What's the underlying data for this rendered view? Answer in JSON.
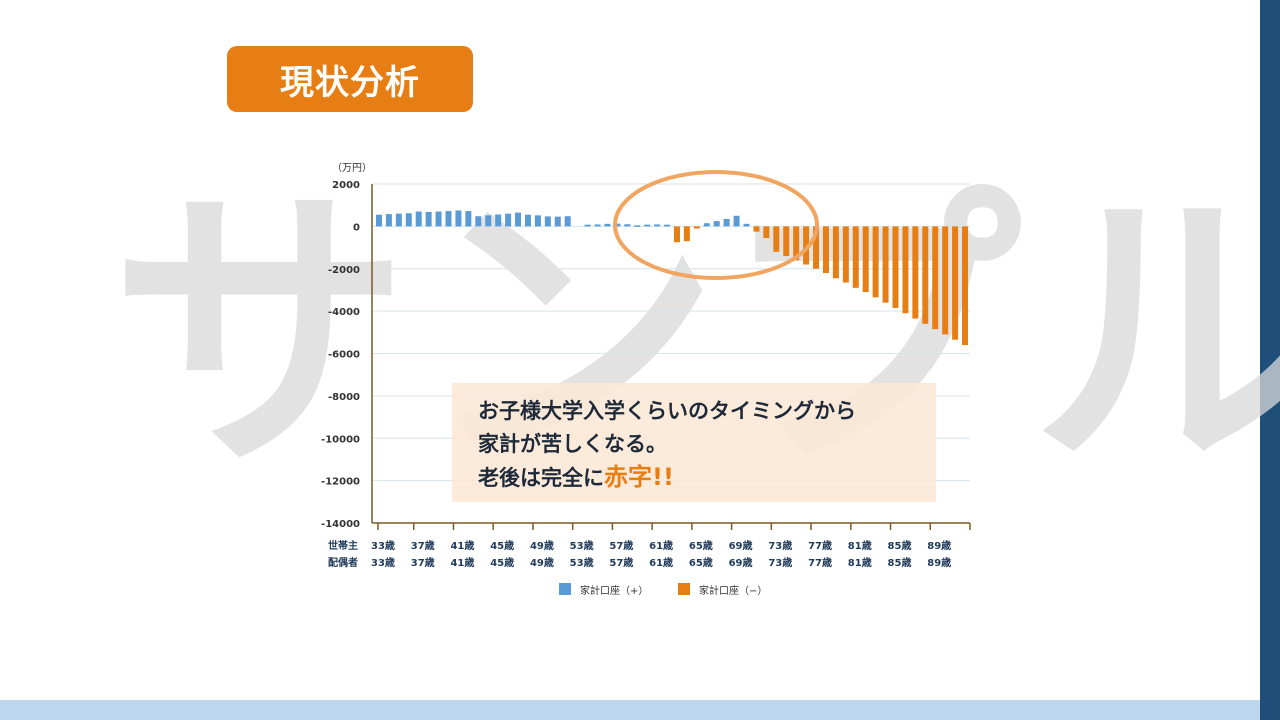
{
  "title": "現状分析",
  "watermark": "サンプル",
  "callout": {
    "line1": "お子様大学入学くらいのタイミングから",
    "line2": "家計が苦しくなる。",
    "line3_prefix": "老後は完全に",
    "line3_highlight": "赤字!!"
  },
  "colors": {
    "accent": "#e67e13",
    "positive": "#5b9bd5",
    "negative": "#e67e13",
    "navy": "#1f4e79",
    "light_blue": "#bdd7ee"
  },
  "chart_data": {
    "type": "bar",
    "yunit": "（万円）",
    "ylim": [
      -14000,
      2000
    ],
    "yticks": [
      "2000",
      "0",
      "-2000",
      "-4000",
      "-6000",
      "-8000",
      "-10000",
      "-12000",
      "-14000"
    ],
    "grid": true,
    "row_labels": [
      "世帯主",
      "配偶者"
    ],
    "xtick_labels": [
      "33歳",
      "37歳",
      "41歳",
      "45歳",
      "49歳",
      "53歳",
      "57歳",
      "61歳",
      "65歳",
      "69歳",
      "73歳",
      "77歳",
      "81歳",
      "85歳",
      "89歳"
    ],
    "age_start": 33,
    "age_end": 92,
    "values": [
      550,
      580,
      600,
      620,
      700,
      680,
      700,
      720,
      750,
      720,
      480,
      520,
      560,
      600,
      650,
      550,
      520,
      470,
      460,
      480,
      0,
      80,
      90,
      120,
      130,
      100,
      50,
      80,
      90,
      80,
      -750,
      -700,
      -100,
      150,
      250,
      350,
      500,
      120,
      -250,
      -550,
      -1200,
      -1400,
      -1600,
      -1800,
      -2000,
      -2200,
      -2450,
      -2650,
      -2900,
      -3100,
      -3350,
      -3600,
      -3850,
      -4100,
      -4350,
      -4600,
      -4850,
      -5100,
      -5350,
      -5600
    ],
    "legend": [
      {
        "name": "家計口座（+）",
        "color": "#5b9bd5"
      },
      {
        "name": "家計口座（−）",
        "color": "#e67e13"
      }
    ],
    "legend_position": "bottom",
    "annotation": "ellipse around ages 62-75"
  }
}
